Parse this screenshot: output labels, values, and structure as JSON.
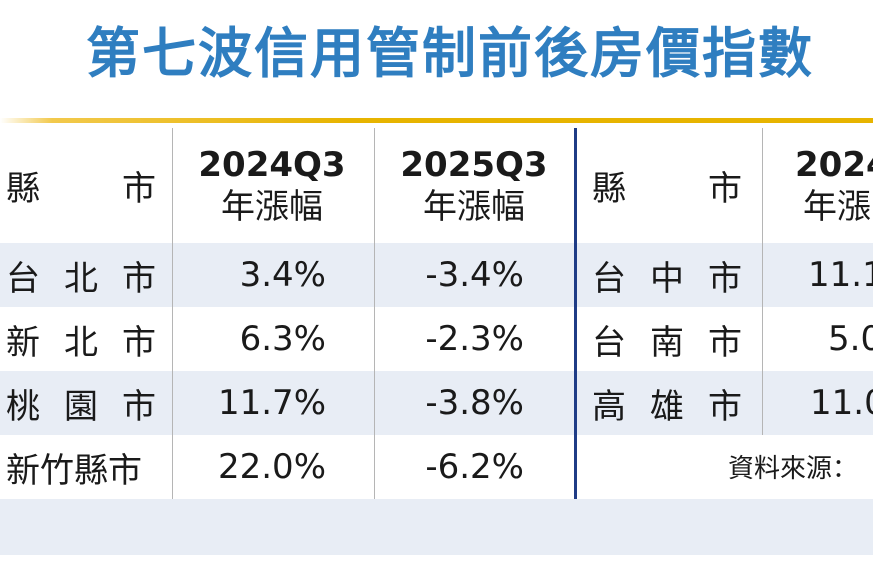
{
  "title": "第七波信用管制前後房價指數",
  "header": {
    "county_left": [
      "縣",
      "市"
    ],
    "col_2024": [
      "2024Q3",
      "年漲幅"
    ],
    "col_2025": [
      "2025Q3",
      "年漲幅"
    ],
    "county_right": [
      "縣",
      "市"
    ],
    "col_2024_right": [
      "2024",
      "年漲"
    ]
  },
  "rows": [
    {
      "left": [
        "台",
        "北",
        "市"
      ],
      "v2024": "3.4%",
      "v2025": "-3.4%",
      "right": [
        "台",
        "中",
        "市"
      ],
      "r2024": "11.1"
    },
    {
      "left": [
        "新",
        "北",
        "市"
      ],
      "v2024": "6.3%",
      "v2025": "-2.3%",
      "right": [
        "台",
        "南",
        "市"
      ],
      "r2024": "5.0"
    },
    {
      "left": [
        "桃",
        "園",
        "市"
      ],
      "v2024": "11.7%",
      "v2025": "-3.8%",
      "right": [
        "高",
        "雄",
        "市"
      ],
      "r2024": "11.0"
    },
    {
      "left": [
        "新竹縣市"
      ],
      "v2024": "22.0%",
      "v2025": "-6.2%"
    }
  ],
  "source": "資料來源："
}
